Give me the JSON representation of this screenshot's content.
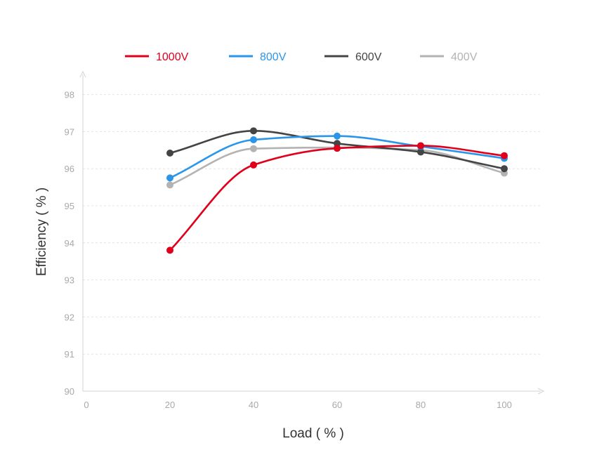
{
  "chart_data": {
    "type": "line",
    "title": "",
    "xlabel": "Load ( % )",
    "ylabel": "Efficiency ( % )",
    "x": [
      20,
      40,
      60,
      80,
      100
    ],
    "xticks": [
      0,
      20,
      40,
      60,
      80,
      100
    ],
    "yticks": [
      90,
      91,
      92,
      93,
      94,
      95,
      96,
      97,
      98
    ],
    "xlim": [
      0,
      110
    ],
    "ylim": [
      90,
      98.5
    ],
    "grid": "horizontal dashed",
    "legend_position": "top-center",
    "smooth": true,
    "series": [
      {
        "name": "1000V",
        "color": "#e0001b",
        "values": [
          93.8,
          96.1,
          96.55,
          96.62,
          96.35
        ]
      },
      {
        "name": "800V",
        "color": "#2b95e9",
        "values": [
          95.75,
          96.78,
          96.88,
          96.6,
          96.28
        ]
      },
      {
        "name": "600V",
        "color": "#444444",
        "values": [
          96.42,
          97.02,
          96.68,
          96.45,
          96.0
        ]
      },
      {
        "name": "400V",
        "color": "#b3b3b3",
        "values": [
          95.56,
          96.54,
          96.57,
          96.5,
          95.88
        ]
      }
    ]
  }
}
